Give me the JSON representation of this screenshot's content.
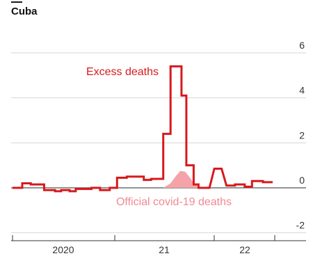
{
  "chart_data": {
    "type": "line",
    "title": "Cuba",
    "yticks": [
      6,
      4,
      2,
      0,
      -2
    ],
    "ylim": [
      -2,
      6
    ],
    "xlabels": [
      "2020",
      "21",
      "22"
    ],
    "grid": true,
    "series": [
      {
        "name": "Excess deaths",
        "color": "#d7191c",
        "x": [
          0,
          0.8,
          0.8,
          1.5,
          1.5,
          2.6,
          2.6,
          3.5,
          3.5,
          4.0,
          4.0,
          4.7,
          4.7,
          5.2,
          5.2,
          6.5,
          6.5,
          7.2,
          7.2,
          8.0,
          8.0,
          8.6,
          8.6,
          9.4,
          9.4,
          10.8,
          10.8,
          11.4,
          11.4,
          12.4,
          12.4,
          13.0,
          13.0,
          13.9,
          13.9,
          14.3,
          14.3,
          14.9,
          14.9,
          15.3,
          15.3,
          16.2,
          16.6,
          17.2,
          17.6,
          18.3,
          18.3,
          19.1,
          19.1,
          19.7,
          19.7,
          20.6,
          20.6,
          21.4
        ],
        "y": [
          0.0,
          0.0,
          0.2,
          0.2,
          0.15,
          0.15,
          -0.1,
          -0.1,
          -0.15,
          -0.15,
          -0.1,
          -0.1,
          -0.15,
          -0.15,
          -0.05,
          -0.05,
          0.0,
          0.0,
          -0.1,
          -0.1,
          0.0,
          0.0,
          0.45,
          0.45,
          0.5,
          0.5,
          0.35,
          0.35,
          0.4,
          0.4,
          2.4,
          2.4,
          5.4,
          5.4,
          4.1,
          4.1,
          1.0,
          1.0,
          0.15,
          0.15,
          0.0,
          0.0,
          0.85,
          0.85,
          0.1,
          0.1,
          0.15,
          0.15,
          0.05,
          0.05,
          0.3,
          0.3,
          0.25,
          0.25
        ]
      },
      {
        "name": "Official covid-19 deaths",
        "color": "#f4a3a8",
        "x": [
          12.4,
          13.0,
          13.4,
          13.8,
          14.2,
          14.6,
          15.0,
          15.4
        ],
        "y": [
          0.0,
          0.2,
          0.5,
          0.75,
          0.72,
          0.45,
          0.15,
          0.0
        ]
      }
    ],
    "annotations": [
      "Excess deaths",
      "Official covid-19 deaths"
    ]
  }
}
